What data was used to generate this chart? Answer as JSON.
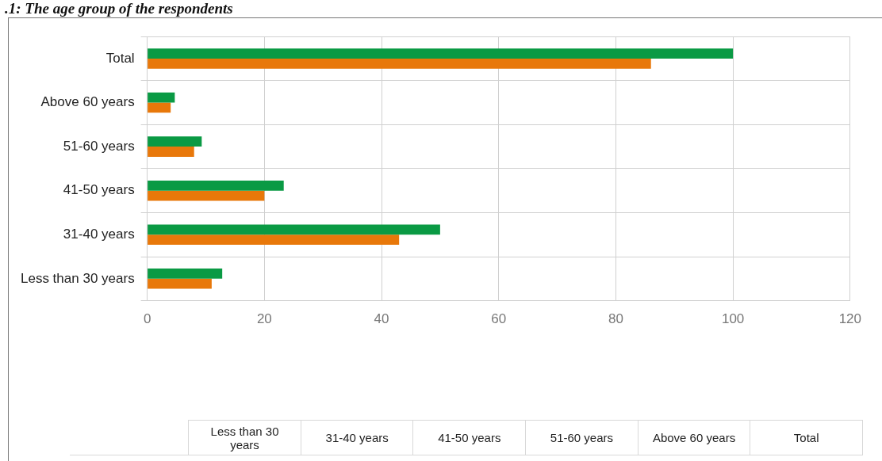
{
  "chart_data": {
    "type": "bar",
    "orientation": "horizontal",
    "title": ".1: The age group of the respondents",
    "categories": [
      "Total",
      "Above 60 years",
      "51-60 years",
      "41-50 years",
      "31-40 years",
      "Less than 30 years"
    ],
    "series": [
      {
        "color": "#0a9a44",
        "values": [
          100,
          4.7,
          9.3,
          23.3,
          50,
          12.8
        ]
      },
      {
        "color": "#e8780a",
        "values": [
          86,
          4,
          8,
          20,
          43,
          11
        ]
      }
    ],
    "xlim": [
      0,
      120
    ],
    "xticks": [
      0,
      20,
      40,
      60,
      80,
      100,
      120
    ],
    "grid": true,
    "legend": false
  }
}
